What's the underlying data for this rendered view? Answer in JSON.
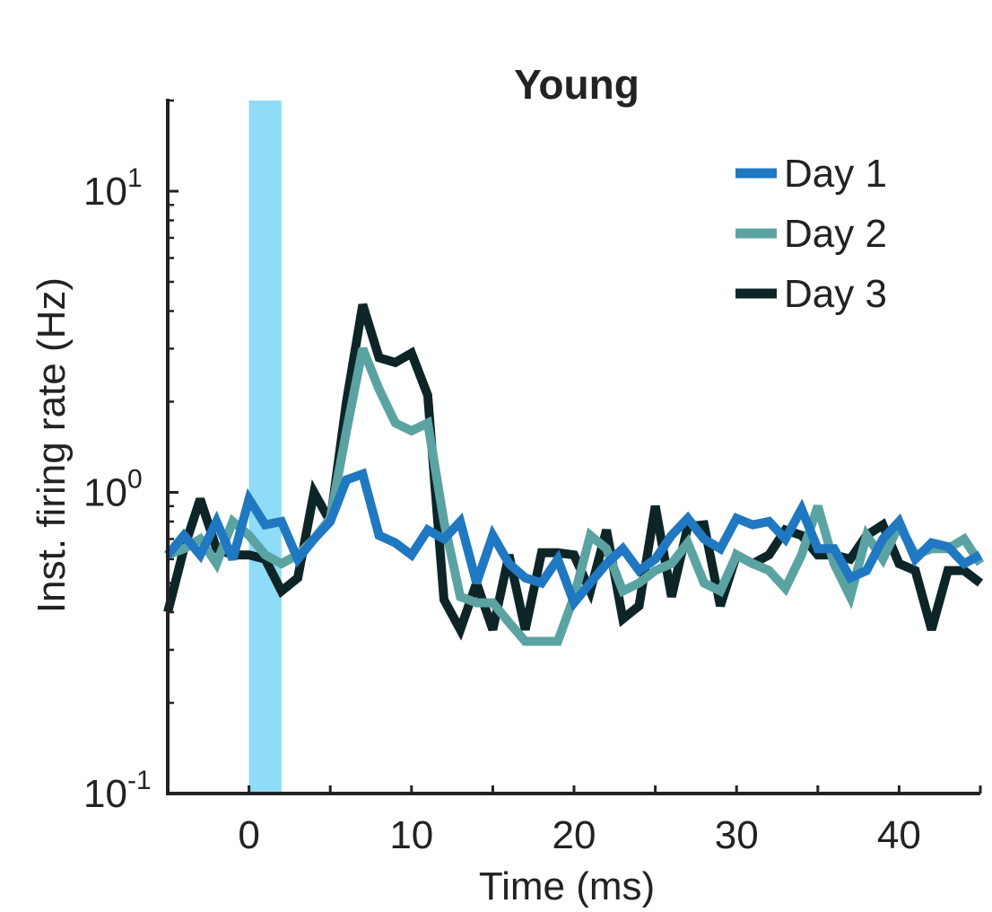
{
  "chart_data": {
    "type": "line",
    "title": "Young",
    "xlabel": "Time (ms)",
    "ylabel": "Inst. firing rate (Hz)",
    "xlim": [
      -5,
      45
    ],
    "ylim": [
      0.1,
      20
    ],
    "yscale": "log",
    "x_ticks": [
      0,
      10,
      20,
      30,
      40
    ],
    "x_tick_labels": [
      "0",
      "10",
      "20",
      "30",
      "40"
    ],
    "y_ticks": [
      {
        "value": 0.1,
        "base": "10",
        "exp": "-1"
      },
      {
        "value": 1,
        "base": "10",
        "exp": "0"
      },
      {
        "value": 10,
        "base": "10",
        "exp": "1"
      }
    ],
    "stimulus_band": {
      "x_start": 0,
      "x_end": 2,
      "color": "#8fdcf8"
    },
    "legend_position": "top-right",
    "series": [
      {
        "name": "Day 3",
        "color": "#0d2526",
        "x": [
          -5,
          -4,
          -3,
          -2,
          -1,
          0,
          1,
          2,
          3,
          4,
          5,
          6,
          7,
          8,
          9,
          10,
          11,
          12,
          13,
          14,
          15,
          16,
          17,
          18,
          19,
          20,
          21,
          22,
          23,
          24,
          25,
          26,
          27,
          28,
          29,
          30,
          31,
          32,
          33,
          34,
          35,
          36,
          37,
          38,
          39,
          40,
          41,
          42,
          43,
          44,
          45
        ],
        "values": [
          0.4,
          0.65,
          0.95,
          0.65,
          0.62,
          0.62,
          0.6,
          0.47,
          0.52,
          1.0,
          0.8,
          2.0,
          4.2,
          2.8,
          2.7,
          2.9,
          2.1,
          0.44,
          0.35,
          0.5,
          0.35,
          0.62,
          0.35,
          0.63,
          0.63,
          0.62,
          0.47,
          0.75,
          0.38,
          0.42,
          0.9,
          0.45,
          0.77,
          0.78,
          0.42,
          0.62,
          0.58,
          0.62,
          0.75,
          0.72,
          0.62,
          0.62,
          0.6,
          0.72,
          0.78,
          0.58,
          0.55,
          0.35,
          0.55,
          0.55,
          0.5
        ]
      },
      {
        "name": "Day 2",
        "color": "#5ba3a3",
        "x": [
          -5,
          -4,
          -3,
          -2,
          -1,
          0,
          1,
          2,
          3,
          4,
          5,
          6,
          7,
          8,
          9,
          10,
          11,
          12,
          13,
          14,
          15,
          16,
          17,
          18,
          19,
          20,
          21,
          22,
          23,
          24,
          25,
          26,
          27,
          28,
          29,
          30,
          31,
          32,
          33,
          34,
          35,
          36,
          37,
          38,
          39,
          40,
          41,
          42,
          43,
          44,
          45
        ],
        "values": [
          0.62,
          0.65,
          0.7,
          0.58,
          0.8,
          0.72,
          0.62,
          0.58,
          0.62,
          0.7,
          0.82,
          1.6,
          3.0,
          2.2,
          1.7,
          1.6,
          1.7,
          0.8,
          0.45,
          0.43,
          0.43,
          0.37,
          0.32,
          0.32,
          0.32,
          0.45,
          0.72,
          0.65,
          0.47,
          0.5,
          0.55,
          0.58,
          0.68,
          0.5,
          0.47,
          0.62,
          0.58,
          0.55,
          0.48,
          0.62,
          0.9,
          0.58,
          0.45,
          0.72,
          0.6,
          0.78,
          0.62,
          0.65,
          0.65,
          0.7,
          0.58
        ]
      },
      {
        "name": "Day 1",
        "color": "#1f78c1",
        "x": [
          -5,
          -4,
          -3,
          -2,
          -1,
          0,
          1,
          2,
          3,
          4,
          5,
          6,
          7,
          8,
          9,
          10,
          11,
          12,
          13,
          14,
          15,
          16,
          17,
          18,
          19,
          20,
          21,
          22,
          23,
          24,
          25,
          26,
          27,
          28,
          29,
          30,
          31,
          32,
          33,
          34,
          35,
          36,
          37,
          38,
          39,
          40,
          41,
          42,
          43,
          44,
          45
        ],
        "values": [
          0.62,
          0.72,
          0.62,
          0.8,
          0.6,
          0.95,
          0.78,
          0.8,
          0.6,
          0.7,
          0.8,
          1.1,
          1.15,
          0.72,
          0.68,
          0.62,
          0.75,
          0.7,
          0.8,
          0.5,
          0.72,
          0.58,
          0.52,
          0.5,
          0.6,
          0.43,
          0.5,
          0.58,
          0.65,
          0.55,
          0.6,
          0.72,
          0.82,
          0.7,
          0.65,
          0.82,
          0.78,
          0.8,
          0.7,
          0.88,
          0.65,
          0.65,
          0.52,
          0.55,
          0.7,
          0.8,
          0.6,
          0.68,
          0.66,
          0.58,
          0.62
        ]
      }
    ]
  }
}
